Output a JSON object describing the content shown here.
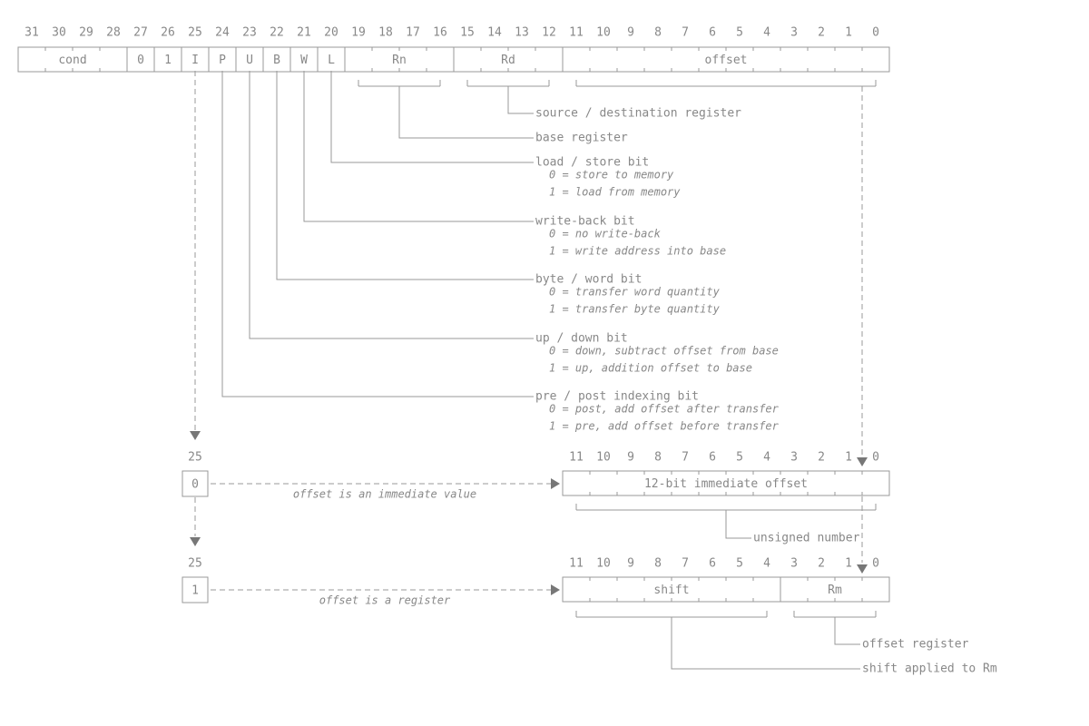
{
  "instruction": {
    "bits": [
      31,
      30,
      29,
      28,
      27,
      26,
      25,
      24,
      23,
      22,
      21,
      20,
      19,
      18,
      17,
      16,
      15,
      14,
      13,
      12,
      11,
      10,
      9,
      8,
      7,
      6,
      5,
      4,
      3,
      2,
      1,
      0
    ],
    "fields": [
      "cond",
      "0",
      "1",
      "I",
      "P",
      "U",
      "B",
      "W",
      "L",
      "Rn",
      "Rd",
      "offset"
    ]
  },
  "descriptions": [
    {
      "label": "source / destination register",
      "notes": []
    },
    {
      "label": "base register",
      "notes": []
    },
    {
      "label": "load / store bit",
      "notes": [
        "0 = store to memory",
        "1 = load from memory"
      ]
    },
    {
      "label": "write-back bit",
      "notes": [
        "0 = no write-back",
        "1 = write address into base"
      ]
    },
    {
      "label": "byte / word bit",
      "notes": [
        "0 = transfer word quantity",
        "1 = transfer byte quantity"
      ]
    },
    {
      "label": "up / down bit",
      "notes": [
        "0 = down, subtract offset from base",
        "1 = up, addition offset to base"
      ]
    },
    {
      "label": "pre / post indexing bit",
      "notes": [
        "0 = post, add offset after transfer",
        "1 = pre, add offset before transfer"
      ]
    }
  ],
  "immediate": {
    "bit_index": 25,
    "bit_value": "0",
    "caption": "offset is an immediate value",
    "bits": [
      11,
      10,
      9,
      8,
      7,
      6,
      5,
      4,
      3,
      2,
      1,
      0
    ],
    "fields": [
      "12-bit immediate offset"
    ],
    "notes": [
      "unsigned number"
    ]
  },
  "register": {
    "bit_index": 25,
    "bit_value": "1",
    "caption": "offset is a register",
    "bits": [
      11,
      10,
      9,
      8,
      7,
      6,
      5,
      4,
      3,
      2,
      1,
      0
    ],
    "fields": [
      "shift",
      "Rm"
    ],
    "notes": [
      "offset register",
      "shift applied to Rm"
    ]
  }
}
